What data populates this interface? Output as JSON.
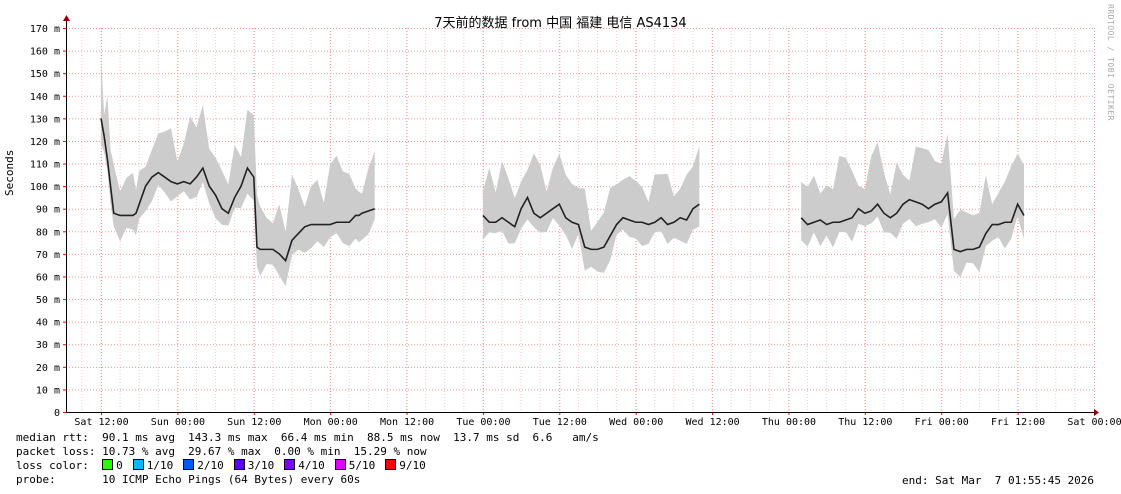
{
  "chart_data": {
    "type": "line",
    "title": "7天前的数据 from 中国 福建 电信 AS4134",
    "ylabel": "Seconds",
    "ylim": [
      0,
      170
    ],
    "y_unit": "m",
    "y_ticks": [
      "0",
      "10 m",
      "20 m",
      "30 m",
      "40 m",
      "50 m",
      "60 m",
      "70 m",
      "80 m",
      "90 m",
      "100 m",
      "110 m",
      "120 m",
      "130 m",
      "140 m",
      "150 m",
      "160 m",
      "170 m"
    ],
    "x_ticks": [
      "Sat 12:00",
      "Sun 00:00",
      "Sun 12:00",
      "Mon 00:00",
      "Mon 12:00",
      "Tue 00:00",
      "Tue 12:00",
      "Wed 00:00",
      "Wed 12:00",
      "Thu 00:00",
      "Thu 12:00",
      "Fri 00:00",
      "Fri 12:00",
      "Sat 00:00"
    ],
    "xlim_hours": [
      -5.5,
      156
    ],
    "grid": true,
    "series": [
      {
        "name": "median rtt",
        "x": [
          0,
          0.5,
          1,
          1.5,
          2,
          3,
          4,
          5,
          5.5,
          6,
          7,
          8,
          9,
          10,
          11,
          12,
          13,
          14,
          15,
          16,
          17,
          18,
          19,
          20,
          21,
          22,
          23,
          24,
          24.5,
          25,
          26,
          27,
          28,
          29,
          30,
          31,
          32,
          33,
          34,
          35,
          36,
          37,
          38,
          39,
          40,
          40.5,
          41,
          42,
          43
        ],
        "y": [
          130,
          122,
          112,
          100,
          88,
          87,
          87,
          87,
          88,
          92,
          100,
          104,
          106,
          104,
          102,
          101,
          102,
          101,
          104,
          108,
          100,
          96,
          90,
          88,
          95,
          100,
          108,
          104,
          73,
          72,
          72,
          72,
          70,
          67,
          76,
          79,
          82,
          83,
          83,
          83,
          83,
          84,
          84,
          84,
          87,
          87,
          88,
          89,
          90
        ]
      },
      {
        "name": "median rtt",
        "x": [
          60,
          61,
          62,
          63,
          64,
          65,
          66,
          67,
          68,
          69,
          70,
          71,
          72,
          73,
          74,
          75,
          76,
          77,
          78,
          79,
          80,
          81,
          82,
          83,
          84,
          85,
          86,
          87,
          88,
          89,
          90,
          91,
          92,
          93,
          94
        ],
        "y": [
          87,
          84,
          84,
          86,
          84,
          82,
          90,
          95,
          88,
          86,
          88,
          90,
          92,
          86,
          84,
          83,
          73,
          72,
          72,
          73,
          78,
          83,
          86,
          85,
          84,
          84,
          83,
          84,
          86,
          83,
          84,
          86,
          85,
          90,
          92
        ]
      },
      {
        "name": "median rtt",
        "x": [
          110,
          111,
          112,
          113,
          114,
          115,
          116,
          117,
          118,
          119,
          120,
          121,
          122,
          123,
          124,
          125,
          126,
          127,
          128,
          129,
          130,
          131,
          132,
          133,
          134,
          135,
          136,
          137,
          138,
          139,
          140,
          141,
          142,
          143,
          144,
          145
        ],
        "y": [
          86,
          83,
          84,
          85,
          83,
          84,
          84,
          85,
          86,
          90,
          88,
          89,
          92,
          88,
          86,
          88,
          92,
          94,
          93,
          92,
          90,
          92,
          93,
          97,
          72,
          71,
          72,
          72,
          73,
          79,
          83,
          83,
          84,
          84,
          92,
          87
        ]
      }
    ]
  },
  "stats": {
    "rtt": "median rtt:  90.1 ms avg  143.3 ms max  66.4 ms min  88.5 ms now  13.7 ms sd  6.6   am/s",
    "loss": "packet loss: 10.73 % avg  29.67 % max  0.00 % min  15.29 % now",
    "loss_color_label": "loss color:",
    "probe": "probe:       10 ICMP Echo Pings (64 Bytes) every 60s",
    "end": "end: Sat Mar  7 01:55:45 2026"
  },
  "loss_colors": [
    {
      "label": "0",
      "color": "#26ff00"
    },
    {
      "label": "1/10",
      "color": "#00b8ff"
    },
    {
      "label": "2/10",
      "color": "#0059ff"
    },
    {
      "label": "3/10",
      "color": "#5e00ff"
    },
    {
      "label": "4/10",
      "color": "#7e00ff"
    },
    {
      "label": "5/10",
      "color": "#dd00ff"
    },
    {
      "label": "9/10",
      "color": "#ff0000"
    }
  ],
  "watermark": "RRDTOOL / TOBI OETIKER"
}
